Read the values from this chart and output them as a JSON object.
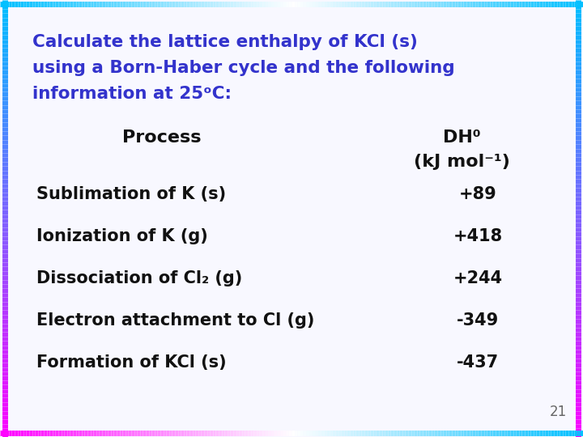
{
  "title_line1": "Calculate the lattice enthalpy of KCl (s)",
  "title_line2": "using a Born-Haber cycle and the following",
  "title_line3": "information at 25ᵒC:",
  "title_color": "#3333CC",
  "background_color": "#F8F8FF",
  "col_header_process": "Process",
  "col_header_dh": "DH⁰",
  "col_header_units": "(kJ mol⁻¹)",
  "header_color": "#111111",
  "processes": [
    "Sublimation of K (s)",
    "Ionization of K (g)",
    "Dissociation of Cl₂ (g)",
    "Electron attachment to Cl (g)",
    "Formation of KCl (s)"
  ],
  "values": [
    "+89",
    "+418",
    "+244",
    "-349",
    "-437"
  ],
  "data_color": "#111111",
  "title_fontsize": 15.5,
  "header_fontsize": 16,
  "data_fontsize": 15,
  "page_number": "21",
  "page_number_color": "#666666",
  "border_cyan": "#00BFFF",
  "border_pink": "#FF00FF"
}
